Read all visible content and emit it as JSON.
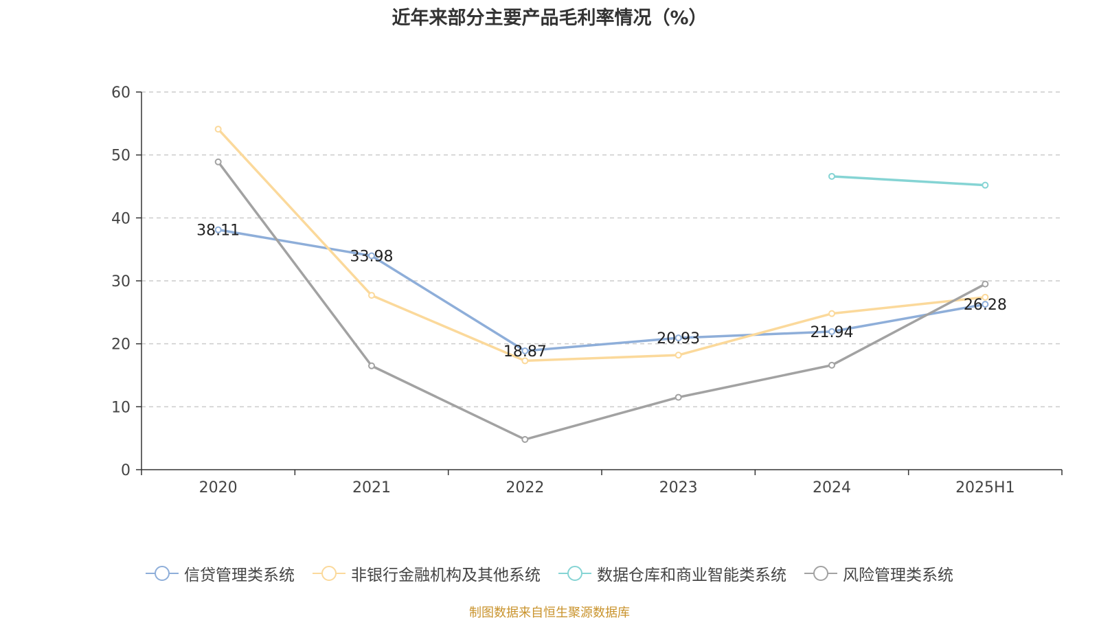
{
  "title": "近年来部分主要产品毛利率情况（%）",
  "source": "制图数据来自恒生聚源数据库",
  "chart_data": {
    "type": "line",
    "title": "近年来部分主要产品毛利率情况（%）",
    "xlabel": "",
    "ylabel": "",
    "categories": [
      "2020",
      "2021",
      "2022",
      "2023",
      "2024",
      "2025H1"
    ],
    "ylim": [
      0,
      60
    ],
    "yticks": [
      0,
      10,
      20,
      30,
      40,
      50,
      60
    ],
    "grid": "horizontal-dashed",
    "legend_position": "bottom",
    "series": [
      {
        "name": "信贷管理类系统",
        "color": "#8eaed9",
        "values": [
          38.11,
          33.98,
          18.87,
          20.93,
          21.94,
          26.28
        ],
        "labels": [
          "38.11",
          "33.98",
          "18.87",
          "20.93",
          "21.94",
          "26.28"
        ]
      },
      {
        "name": "非银行金融机构及其他系统",
        "color": "#fbd99b",
        "values": [
          54.1,
          27.7,
          17.3,
          18.2,
          24.8,
          27.4
        ],
        "labels": []
      },
      {
        "name": "数据仓库和商业智能类系统",
        "color": "#85d4d4",
        "values": [
          null,
          null,
          null,
          null,
          46.6,
          45.2
        ],
        "labels": []
      },
      {
        "name": "风险管理类系统",
        "color": "#a2a2a2",
        "values": [
          48.9,
          16.5,
          4.8,
          11.5,
          16.6,
          29.5
        ],
        "labels": []
      }
    ]
  }
}
